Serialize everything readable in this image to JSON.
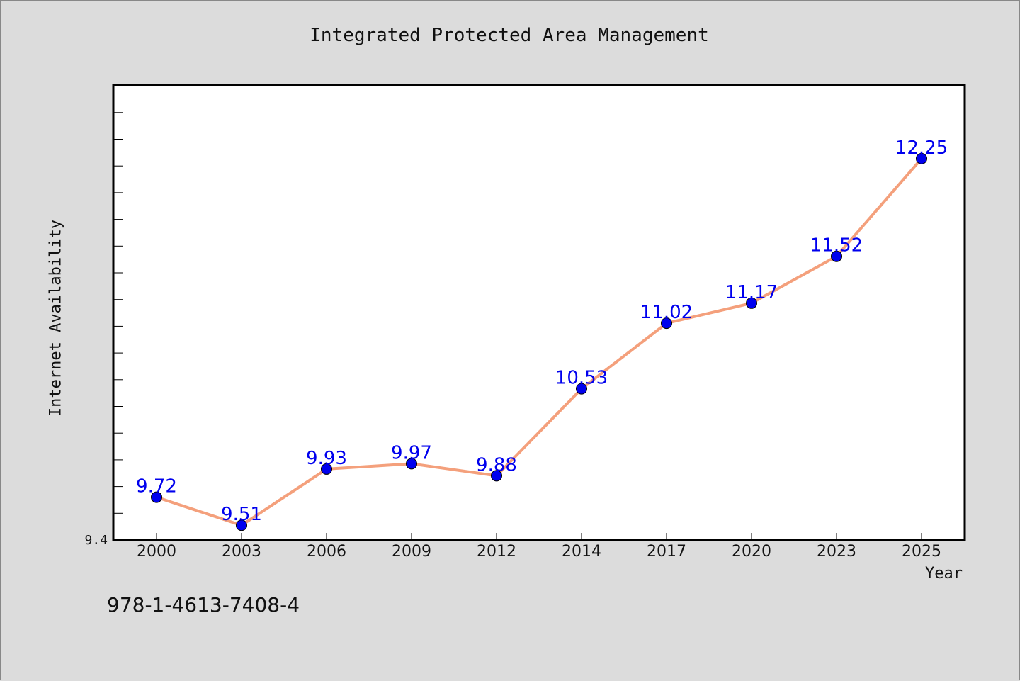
{
  "chart_data": {
    "type": "line",
    "title": "Integrated Protected Area Management",
    "xlabel": "Year",
    "ylabel": "Internet Availability",
    "categories": [
      "2000",
      "2003",
      "2006",
      "2009",
      "2012",
      "2014",
      "2017",
      "2020",
      "2023",
      "2025"
    ],
    "series": [
      {
        "values": [
          9.72,
          9.51,
          9.93,
          9.97,
          9.88,
          10.53,
          11.02,
          11.17,
          11.52,
          12.25
        ]
      }
    ],
    "ylim": [
      9.4,
      12.8
    ],
    "y_tick_labels": [
      "9.4"
    ],
    "grid": false,
    "line_color": "#f4a07c",
    "marker_color": "#0000ee",
    "label_color": "#0000ee"
  },
  "footer": {
    "isbn": "978-1-4613-7408-4"
  }
}
